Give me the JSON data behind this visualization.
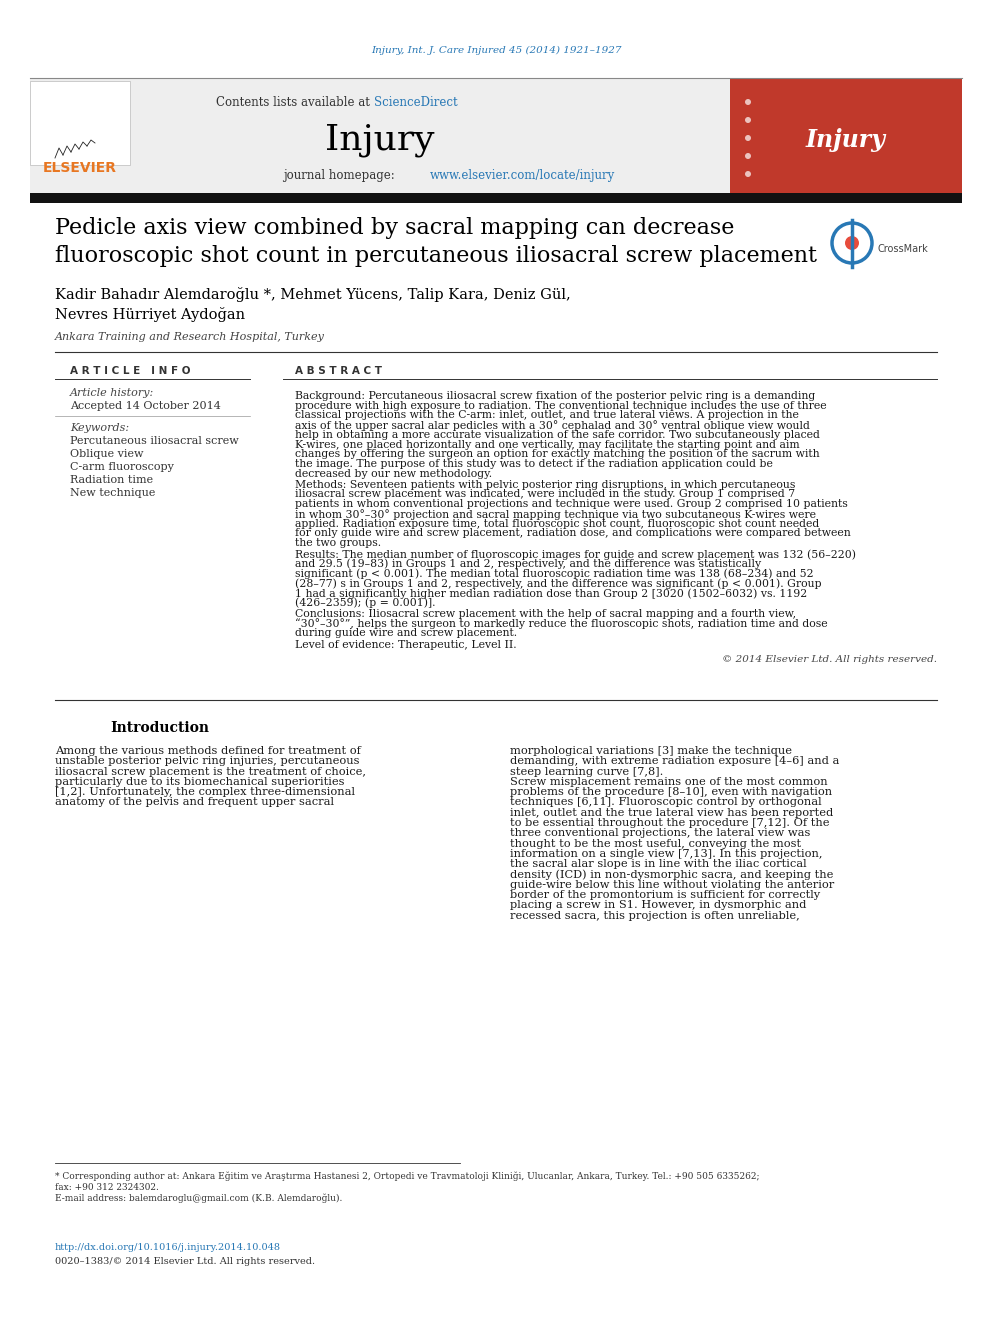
{
  "journal_ref": "Injury, Int. J. Care Injured 45 (2014) 1921–1927",
  "journal_name": "Injury",
  "journal_homepage_url": "www.elsevier.com/locate/injury",
  "title_line1": "Pedicle axis view combined by sacral mapping can decrease",
  "title_line2": "fluoroscopic shot count in percutaneous iliosacral screw placement",
  "authors": "Kadir Bahadır Alemdaroğlu *, Mehmet Yücens, Talip Kara, Deniz Gül,",
  "authors2": "Nevres Hürriyet Aydoğan",
  "affiliation": "Ankara Training and Research Hospital, Turkey",
  "kw1": "Percutaneous iliosacral screw",
  "kw2": "Oblique view",
  "kw3": "C-arm fluoroscopy",
  "kw4": "Radiation time",
  "kw5": "New technique",
  "background_label": "Background:",
  "background_body": "  Percutaneous iliosacral screw fixation of the posterior pelvic ring is a demanding procedure with high exposure to radiation. The conventional technique includes the use of three classical projections with the C-arm: inlet, outlet, and true lateral views. A projection in the axis of the upper sacral alar pedicles with a 30° cephalad and 30° ventral oblique view would help in obtaining a more accurate visualization of the safe corridor. Two subcutaneously placed K-wires, one placed horizontally and one vertically, may facilitate the starting point and aim changes by offering the surgeon an option for exactly matching the position of the sacrum with the image. The purpose of this study was to detect if the radiation application could be decreased by our new methodology.",
  "methods_label": "Methods:",
  "methods_body": "  Seventeen patients with pelvic posterior ring disruptions, in which percutaneous iliosacral screw placement was indicated, were included in the study. Group 1 comprised 7 patients in whom conventional projections and technique were used. Group 2 comprised 10 patients in whom 30°–30° projection and sacral mapping technique via two subcutaneous K-wires were applied. Radiation exposure time, total fluoroscopic shot count, fluoroscopic shot count needed for only guide wire and screw placement, radiation dose, and complications were compared between the two groups.",
  "results_label": "Results:",
  "results_body": "  The median number of fluoroscopic images for guide and screw placement was 132 (56–220) and 29.5 (19–83) in Groups 1 and 2, respectively, and the difference was statistically significant (p < 0.001). The median total fluoroscopic radiation time was 138 (68–234) and 52 (28–77) s in Groups 1 and 2, respectively, and the difference was significant (p < 0.001). Group 1 had a significantly higher median radiation dose than Group 2 [3020 (1502–6032) vs. 1192 (426–2359); (p = 0.001)].",
  "conclusions_label": "Conclusions:",
  "conclusions_body": "  Iliosacral screw placement with the help of sacral mapping and a fourth view, “30°–30°”, helps the surgeon to markedly reduce the fluoroscopic shots, radiation time and dose during guide wire and screw placement.",
  "level_label": "Level of evidence:",
  "level_body": "  Therapeutic, Level II.",
  "copyright_text": "© 2014 Elsevier Ltd. All rights reserved.",
  "intro_title": "Introduction",
  "intro_col1": "Among the various methods defined for treatment of unstable posterior pelvic ring injuries, percutaneous iliosacral screw placement is the treatment of choice, particularly due to its biomechanical superiorities [1,2]. Unfortunately, the complex three-dimensional anatomy of the pelvis and frequent upper sacral",
  "intro_col2": "morphological variations [3] make the technique demanding, with extreme radiation exposure [4–6] and a steep learning curve [7,8].\n   Screw misplacement remains one of the most common problems of the procedure [8–10], even with navigation techniques [6,11]. Fluoroscopic control by orthogonal inlet, outlet and the true lateral view has been reported to be essential throughout the procedure [7,12]. Of the three conventional projections, the lateral view was thought to be the most useful, conveying the most information on a single view [7,13]. In this projection, the sacral alar slope is in line with the iliac cortical density (ICD) in non-dysmorphic sacra, and keeping the guide-wire below this line without violating the anterior border of the promontorium is sufficient for correctly placing a screw in S1. However, in dysmorphic and recessed sacra, this projection is often unreliable,",
  "footnote1": "* Corresponding author at: Ankara Eğitim ve Araştırma Hastanesi 2, Ortopedi ve Travmatoloji Kliniği, Ulucanlar, Ankara, Turkey. Tel.: +90 505 6335262;",
  "footnote2": "fax: +90 312 2324302.",
  "footnote3": "E-mail address: balemdaroglu@gmail.com (K.B. Alemdaroğlu).",
  "doi_text": "http://dx.doi.org/10.1016/j.injury.2014.10.048",
  "issn_text": "0020–1383/© 2014 Elsevier Ltd. All rights reserved.",
  "bg_color": "#ffffff",
  "blue_color": "#2878b5",
  "orange_color": "#e87722",
  "top_bar_color": "#111111"
}
